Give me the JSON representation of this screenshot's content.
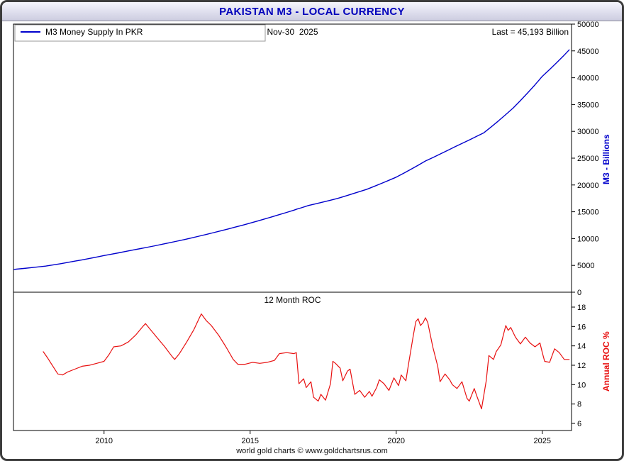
{
  "chart_data": {
    "type": "line",
    "title": "PAKISTAN M3 - LOCAL CURRENCY",
    "footer": "world gold charts © www.goldchartsrus.com",
    "x": {
      "lim": [
        2006.9,
        2026.0
      ],
      "ticks": [
        2010,
        2015,
        2020,
        2025
      ]
    },
    "panels": [
      {
        "name": "m3",
        "legend": "M3 Money Supply In PKR",
        "date_label": "Nov-30  2025",
        "last_label": "Last = 45,193 Billion",
        "ylabel": "M3 - Billions",
        "ylim": [
          0,
          50000
        ],
        "yticks": [
          0,
          5000,
          10000,
          15000,
          20000,
          25000,
          30000,
          35000,
          40000,
          45000,
          50000
        ],
        "color": "#0000cc",
        "series": [
          [
            2006.92,
            4250
          ],
          [
            2007.0,
            4300
          ],
          [
            2007.25,
            4435
          ],
          [
            2007.5,
            4575
          ],
          [
            2007.75,
            4720
          ],
          [
            2008.0,
            4870
          ],
          [
            2008.25,
            5085
          ],
          [
            2008.5,
            5310
          ],
          [
            2008.75,
            5545
          ],
          [
            2009.0,
            5790
          ],
          [
            2009.25,
            6035
          ],
          [
            2009.5,
            6290
          ],
          [
            2009.75,
            6560
          ],
          [
            2010.0,
            6840
          ],
          [
            2010.25,
            7090
          ],
          [
            2010.5,
            7345
          ],
          [
            2010.75,
            7615
          ],
          [
            2011.0,
            7890
          ],
          [
            2011.25,
            8140
          ],
          [
            2011.5,
            8400
          ],
          [
            2011.75,
            8670
          ],
          [
            2012.0,
            8950
          ],
          [
            2012.25,
            9230
          ],
          [
            2012.5,
            9520
          ],
          [
            2012.75,
            9820
          ],
          [
            2013.0,
            10130
          ],
          [
            2013.25,
            10445
          ],
          [
            2013.5,
            10770
          ],
          [
            2013.75,
            11105
          ],
          [
            2014.0,
            11450
          ],
          [
            2014.25,
            11795
          ],
          [
            2014.5,
            12150
          ],
          [
            2014.75,
            12515
          ],
          [
            2015.0,
            12890
          ],
          [
            2015.25,
            13270
          ],
          [
            2015.5,
            13660
          ],
          [
            2015.75,
            14060
          ],
          [
            2016.0,
            14470
          ],
          [
            2016.25,
            14880
          ],
          [
            2016.5,
            15300
          ],
          [
            2016.6,
            15500
          ],
          [
            2016.75,
            15735
          ],
          [
            2017.0,
            16180
          ],
          [
            2017.25,
            16500
          ],
          [
            2017.5,
            16830
          ],
          [
            2017.75,
            17160
          ],
          [
            2018.0,
            17500
          ],
          [
            2018.25,
            17915
          ],
          [
            2018.5,
            18340
          ],
          [
            2018.75,
            18770
          ],
          [
            2019.0,
            19210
          ],
          [
            2019.25,
            19750
          ],
          [
            2019.5,
            20300
          ],
          [
            2019.75,
            20870
          ],
          [
            2020.0,
            21450
          ],
          [
            2020.25,
            22170
          ],
          [
            2020.5,
            22910
          ],
          [
            2020.75,
            23680
          ],
          [
            2021.0,
            24470
          ],
          [
            2021.25,
            25100
          ],
          [
            2021.5,
            25750
          ],
          [
            2021.75,
            26415
          ],
          [
            2022.0,
            27100
          ],
          [
            2022.25,
            27740
          ],
          [
            2022.5,
            28390
          ],
          [
            2022.75,
            29060
          ],
          [
            2023.0,
            29740
          ],
          [
            2023.25,
            30830
          ],
          [
            2023.5,
            31960
          ],
          [
            2023.75,
            33130
          ],
          [
            2024.0,
            34340
          ],
          [
            2024.25,
            35730
          ],
          [
            2024.5,
            37180
          ],
          [
            2024.75,
            38680
          ],
          [
            2025.0,
            40260
          ],
          [
            2025.25,
            41540
          ],
          [
            2025.5,
            42860
          ],
          [
            2025.75,
            44220
          ],
          [
            2025.92,
            45193
          ]
        ]
      },
      {
        "name": "roc",
        "title": "12 Month ROC",
        "ylabel": "Annual ROC %",
        "ylim": [
          6,
          18
        ],
        "yticks": [
          6,
          8,
          10,
          12,
          14,
          16,
          18
        ],
        "color": "#e81010",
        "series": [
          [
            2007.92,
            13.4
          ],
          [
            2008.08,
            12.7
          ],
          [
            2008.25,
            11.9
          ],
          [
            2008.42,
            11.1
          ],
          [
            2008.58,
            11.0
          ],
          [
            2008.75,
            11.3
          ],
          [
            2009.0,
            11.6
          ],
          [
            2009.25,
            11.9
          ],
          [
            2009.5,
            12.0
          ],
          [
            2009.75,
            12.2
          ],
          [
            2010.0,
            12.4
          ],
          [
            2010.17,
            13.1
          ],
          [
            2010.33,
            13.9
          ],
          [
            2010.58,
            14.0
          ],
          [
            2010.83,
            14.4
          ],
          [
            2011.08,
            15.1
          ],
          [
            2011.33,
            16.0
          ],
          [
            2011.42,
            16.3
          ],
          [
            2011.58,
            15.7
          ],
          [
            2011.83,
            14.8
          ],
          [
            2012.08,
            13.9
          ],
          [
            2012.33,
            12.9
          ],
          [
            2012.42,
            12.6
          ],
          [
            2012.58,
            13.2
          ],
          [
            2012.83,
            14.4
          ],
          [
            2013.08,
            15.7
          ],
          [
            2013.25,
            16.8
          ],
          [
            2013.33,
            17.3
          ],
          [
            2013.5,
            16.6
          ],
          [
            2013.67,
            16.1
          ],
          [
            2013.92,
            15.1
          ],
          [
            2014.17,
            13.9
          ],
          [
            2014.42,
            12.6
          ],
          [
            2014.58,
            12.1
          ],
          [
            2014.83,
            12.1
          ],
          [
            2015.08,
            12.3
          ],
          [
            2015.33,
            12.2
          ],
          [
            2015.58,
            12.3
          ],
          [
            2015.83,
            12.5
          ],
          [
            2016.0,
            13.2
          ],
          [
            2016.25,
            13.3
          ],
          [
            2016.5,
            13.2
          ],
          [
            2016.58,
            13.3
          ],
          [
            2016.67,
            10.1
          ],
          [
            2016.83,
            10.6
          ],
          [
            2016.92,
            9.7
          ],
          [
            2017.08,
            10.3
          ],
          [
            2017.17,
            8.7
          ],
          [
            2017.33,
            8.3
          ],
          [
            2017.42,
            9.0
          ],
          [
            2017.58,
            8.4
          ],
          [
            2017.75,
            10.1
          ],
          [
            2017.83,
            12.4
          ],
          [
            2017.92,
            12.2
          ],
          [
            2018.08,
            11.7
          ],
          [
            2018.17,
            10.4
          ],
          [
            2018.33,
            11.4
          ],
          [
            2018.42,
            11.6
          ],
          [
            2018.58,
            9.0
          ],
          [
            2018.75,
            9.4
          ],
          [
            2018.92,
            8.7
          ],
          [
            2019.08,
            9.3
          ],
          [
            2019.17,
            8.8
          ],
          [
            2019.33,
            9.7
          ],
          [
            2019.42,
            10.5
          ],
          [
            2019.58,
            10.1
          ],
          [
            2019.75,
            9.4
          ],
          [
            2019.92,
            10.7
          ],
          [
            2020.08,
            9.9
          ],
          [
            2020.17,
            11.0
          ],
          [
            2020.33,
            10.4
          ],
          [
            2020.42,
            12.1
          ],
          [
            2020.58,
            15.0
          ],
          [
            2020.67,
            16.5
          ],
          [
            2020.75,
            16.8
          ],
          [
            2020.83,
            16.1
          ],
          [
            2020.92,
            16.4
          ],
          [
            2021.0,
            16.9
          ],
          [
            2021.08,
            16.4
          ],
          [
            2021.25,
            13.9
          ],
          [
            2021.42,
            11.9
          ],
          [
            2021.5,
            10.3
          ],
          [
            2021.67,
            11.1
          ],
          [
            2021.83,
            10.5
          ],
          [
            2021.92,
            10.0
          ],
          [
            2022.08,
            9.6
          ],
          [
            2022.25,
            10.3
          ],
          [
            2022.42,
            8.6
          ],
          [
            2022.5,
            8.3
          ],
          [
            2022.67,
            9.6
          ],
          [
            2022.75,
            8.9
          ],
          [
            2022.92,
            7.5
          ],
          [
            2023.08,
            10.4
          ],
          [
            2023.17,
            13.0
          ],
          [
            2023.33,
            12.6
          ],
          [
            2023.42,
            13.4
          ],
          [
            2023.58,
            14.1
          ],
          [
            2023.75,
            16.1
          ],
          [
            2023.83,
            15.6
          ],
          [
            2023.92,
            15.9
          ],
          [
            2024.08,
            14.9
          ],
          [
            2024.25,
            14.2
          ],
          [
            2024.42,
            14.9
          ],
          [
            2024.58,
            14.3
          ],
          [
            2024.75,
            13.9
          ],
          [
            2024.92,
            14.3
          ],
          [
            2025.0,
            13.3
          ],
          [
            2025.08,
            12.4
          ],
          [
            2025.25,
            12.3
          ],
          [
            2025.42,
            13.7
          ],
          [
            2025.58,
            13.3
          ],
          [
            2025.75,
            12.6
          ],
          [
            2025.92,
            12.6
          ]
        ]
      }
    ]
  }
}
